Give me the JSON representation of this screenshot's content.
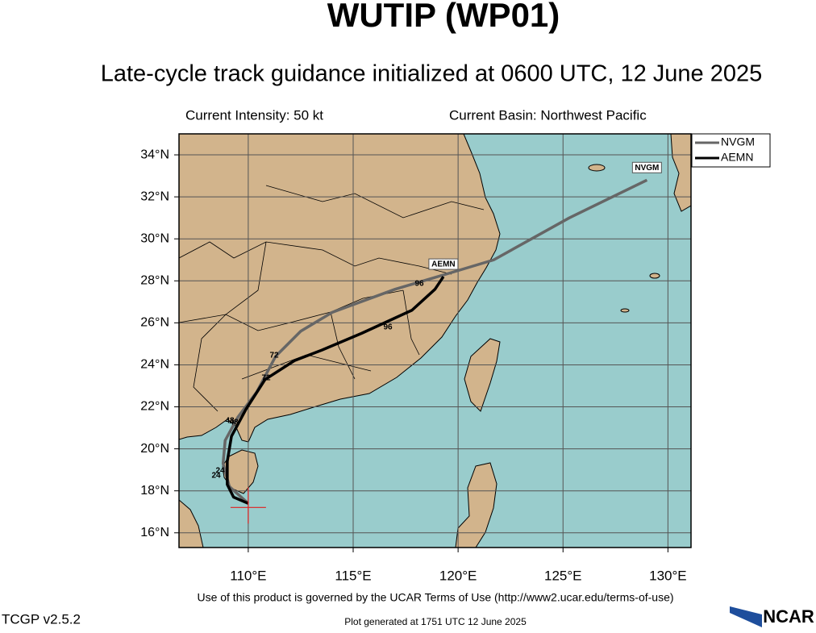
{
  "header": {
    "title": "WUTIP (WP01)",
    "subtitle": "Late-cycle track guidance initialized at 0600 UTC, 12 June 2025"
  },
  "chart_data": {
    "type": "track-map",
    "info_left": "Current Intensity: 50 kt",
    "info_right": "Current Basin: Northwest Pacific",
    "xlim": [
      106.7,
      131.1
    ],
    "ylim": [
      15.3,
      35.0
    ],
    "xticks": [
      {
        "value": 110,
        "label": "110°E"
      },
      {
        "value": 115,
        "label": "115°E"
      },
      {
        "value": 120,
        "label": "120°E"
      },
      {
        "value": 125,
        "label": "125°E"
      },
      {
        "value": 130,
        "label": "130°E"
      }
    ],
    "yticks": [
      {
        "value": 16,
        "label": "16°N"
      },
      {
        "value": 18,
        "label": "18°N"
      },
      {
        "value": 20,
        "label": "20°N"
      },
      {
        "value": 22,
        "label": "22°N"
      },
      {
        "value": 24,
        "label": "24°N"
      },
      {
        "value": 26,
        "label": "26°N"
      },
      {
        "value": 28,
        "label": "28°N"
      },
      {
        "value": 30,
        "label": "30°N"
      },
      {
        "value": 32,
        "label": "32°N"
      },
      {
        "value": 34,
        "label": "34°N"
      }
    ],
    "grid": true,
    "legend": "upper right",
    "series": [
      {
        "name": "NVGM",
        "color": "#666666",
        "lon": [
          110.0,
          109.1,
          108.8,
          108.9,
          109.5,
          110.4,
          111.3,
          112.5,
          114.0,
          117.0,
          119.7,
          121.7,
          125.3,
          129.0
        ],
        "lat": [
          17.4,
          18.2,
          19.3,
          20.4,
          21.5,
          22.7,
          24.4,
          25.6,
          26.5,
          27.6,
          28.4,
          29.0,
          31.0,
          32.8
        ],
        "hour_labels": [
          24,
          48,
          72,
          96
        ]
      },
      {
        "name": "AEMN",
        "color": "#000000",
        "lon": [
          110.0,
          109.3,
          109.0,
          109.0,
          109.2,
          109.9,
          110.8,
          112.2,
          113.5,
          115.4,
          117.8,
          118.9,
          119.3
        ],
        "lat": [
          17.4,
          17.7,
          18.3,
          19.4,
          20.6,
          21.9,
          23.3,
          24.2,
          24.7,
          25.5,
          26.6,
          27.6,
          28.2
        ],
        "hour_labels": [
          24,
          48,
          72,
          96
        ]
      }
    ]
  },
  "footer": {
    "terms": "Use of this product is governed by the UCAR Terms of Use (http://www2.ucar.edu/terms-of-use)",
    "version": "TCGP v2.5.2",
    "generated": "Plot generated at 1751 UTC   12 June 2025",
    "logo": "NCAR"
  }
}
